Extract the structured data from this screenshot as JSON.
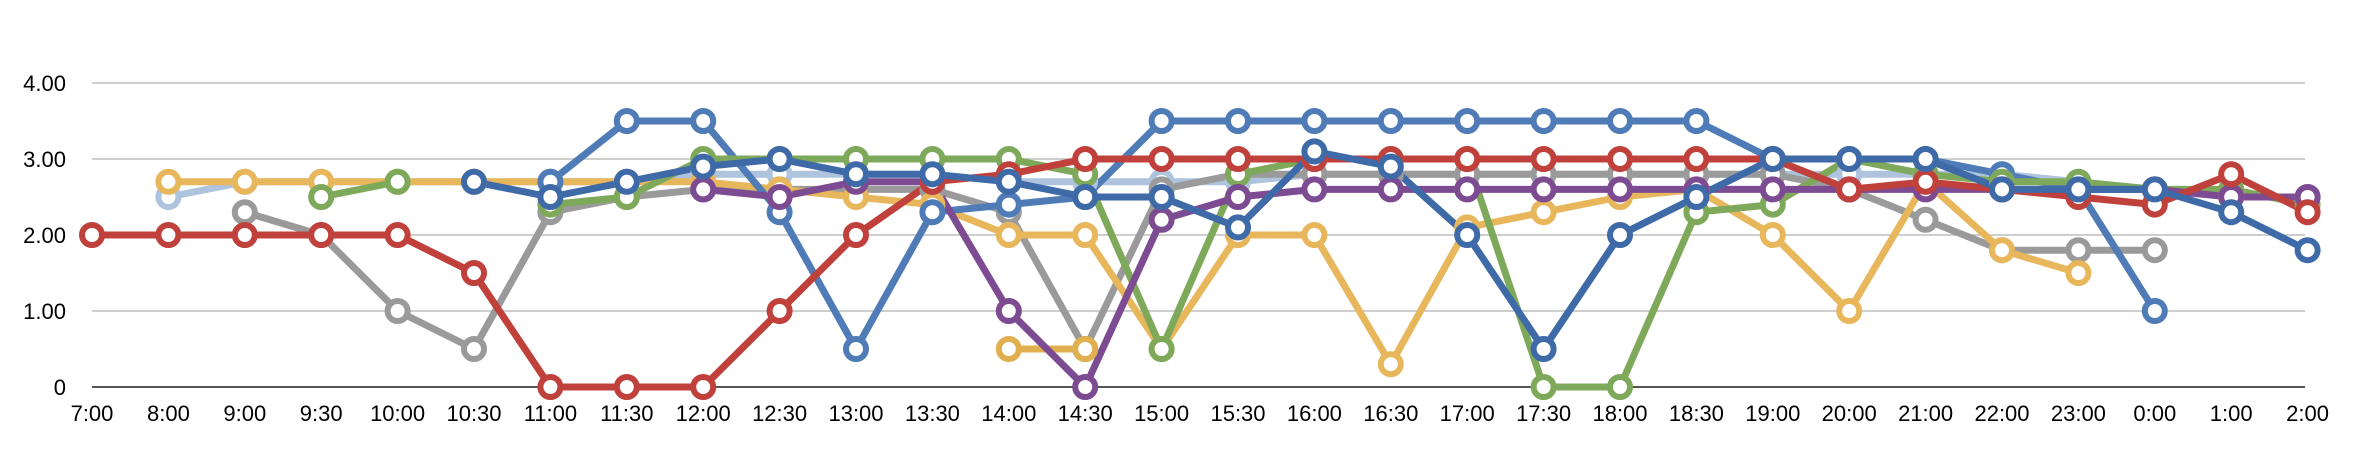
{
  "chart_data": {
    "type": "line",
    "title": "",
    "xlabel": "",
    "ylabel": "",
    "categories": [
      "7:00",
      "8:00",
      "9:00",
      "9:30",
      "10:00",
      "10:30",
      "11:00",
      "11:30",
      "12:00",
      "12:30",
      "13:00",
      "13:30",
      "14:00",
      "14:30",
      "15:00",
      "15:30",
      "16:00",
      "16:30",
      "17:00",
      "17:30",
      "18:00",
      "18:30",
      "19:00",
      "20:00",
      "21:00",
      "22:00",
      "23:00",
      "0:00",
      "1:00",
      "2:00"
    ],
    "yticks": [
      "0",
      "1.00",
      "2.00",
      "3.00",
      "4.00"
    ],
    "ylim": [
      0,
      4
    ],
    "grid": true,
    "legend": "none",
    "series": [
      {
        "color": "#aec3de",
        "values": [
          null,
          2.5,
          2.7,
          2.7,
          2.7,
          2.7,
          2.7,
          2.7,
          2.8,
          2.8,
          2.8,
          2.8,
          2.7,
          2.7,
          2.7,
          2.7,
          2.8,
          2.8,
          2.8,
          2.8,
          2.8,
          2.8,
          2.8,
          2.8,
          2.8,
          2.8,
          2.7,
          2.6,
          2.5,
          2.5
        ]
      },
      {
        "color": "#9a9a9a",
        "values": [
          null,
          null,
          2.3,
          2.0,
          1.0,
          0.5,
          2.3,
          2.5,
          2.6,
          2.6,
          2.6,
          2.6,
          2.3,
          0.5,
          2.6,
          2.8,
          2.8,
          2.8,
          2.8,
          2.8,
          2.8,
          2.8,
          2.8,
          2.6,
          2.2,
          1.8,
          1.8,
          1.8,
          null,
          null
        ]
      },
      {
        "color": "#e8b75c",
        "values": [
          null,
          2.7,
          2.7,
          2.7,
          2.7,
          2.7,
          2.7,
          2.7,
          2.7,
          2.6,
          2.5,
          2.4,
          2.0,
          2.0,
          0.5,
          2.0,
          2.0,
          0.3,
          2.1,
          2.3,
          2.5,
          2.6,
          2.0,
          1.0,
          2.7,
          1.8,
          1.5,
          null,
          null,
          null
        ]
      },
      {
        "color": "#e0b050",
        "values": [
          null,
          null,
          null,
          null,
          null,
          null,
          null,
          null,
          null,
          null,
          null,
          null,
          0.5,
          0.5,
          null,
          null,
          null,
          null,
          null,
          null,
          null,
          null,
          null,
          null,
          null,
          null,
          null,
          null,
          null,
          null
        ]
      },
      {
        "color": "#4f7bb7",
        "values": [
          null,
          null,
          null,
          null,
          null,
          null,
          2.7,
          3.5,
          3.5,
          2.3,
          0.5,
          2.3,
          2.4,
          2.5,
          3.5,
          3.5,
          3.5,
          3.5,
          3.5,
          3.5,
          3.5,
          3.5,
          3.0,
          3.0,
          3.0,
          2.8,
          2.6,
          1.0,
          null,
          null
        ]
      },
      {
        "color": "#7fa95a",
        "values": [
          null,
          null,
          null,
          2.5,
          2.7,
          null,
          2.4,
          2.5,
          3.0,
          3.0,
          3.0,
          3.0,
          3.0,
          2.8,
          0.5,
          2.8,
          3.0,
          3.0,
          3.0,
          0.0,
          0.0,
          2.3,
          2.4,
          3.0,
          2.8,
          2.7,
          2.7,
          2.6,
          2.6,
          2.4
        ]
      },
      {
        "color": "#7d4b92",
        "values": [
          null,
          null,
          null,
          null,
          null,
          null,
          null,
          null,
          2.6,
          2.5,
          2.7,
          2.7,
          1.0,
          0.0,
          2.2,
          2.5,
          2.6,
          2.6,
          2.6,
          2.6,
          2.6,
          2.6,
          2.6,
          2.6,
          2.6,
          2.6,
          2.6,
          2.6,
          2.5,
          2.5
        ]
      },
      {
        "color": "#c0403c",
        "values": [
          2.0,
          2.0,
          2.0,
          2.0,
          2.0,
          1.5,
          0.0,
          0.0,
          0.0,
          1.0,
          2.0,
          2.7,
          2.8,
          3.0,
          3.0,
          3.0,
          3.0,
          3.0,
          3.0,
          3.0,
          3.0,
          3.0,
          3.0,
          2.6,
          2.7,
          2.6,
          2.5,
          2.4,
          2.8,
          2.3
        ]
      },
      {
        "color": "#3f6aa8",
        "values": [
          null,
          null,
          null,
          null,
          null,
          2.7,
          2.5,
          2.7,
          2.9,
          3.0,
          2.8,
          2.8,
          2.7,
          2.5,
          2.5,
          2.1,
          3.1,
          2.9,
          2.0,
          0.5,
          2.0,
          2.5,
          3.0,
          3.0,
          3.0,
          2.6,
          2.6,
          2.6,
          2.3,
          1.8
        ]
      }
    ]
  }
}
